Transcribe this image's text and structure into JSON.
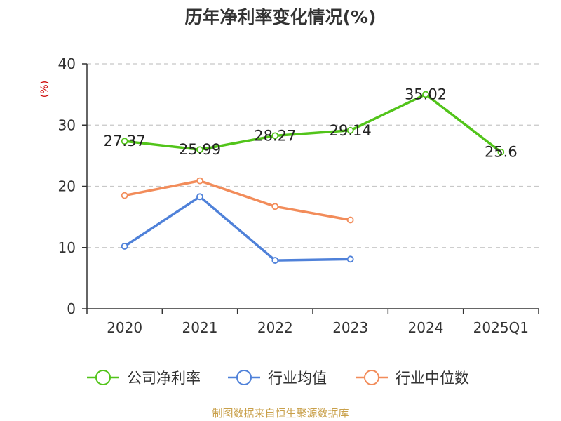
{
  "chart_data": {
    "type": "line",
    "title": "历年净利率变化情况(%)",
    "ylabel": "(%)",
    "xlabel": "",
    "categories": [
      "2020",
      "2021",
      "2022",
      "2023",
      "2024",
      "2025Q1"
    ],
    "ylim": [
      0,
      40
    ],
    "yticks": [
      0,
      10,
      20,
      30,
      40
    ],
    "grid": true,
    "series": [
      {
        "name": "公司净利率",
        "color": "#52c41a",
        "values": [
          27.37,
          25.99,
          28.27,
          29.14,
          35.02,
          25.6
        ],
        "labels": [
          "27.37",
          "25.99",
          "28.27",
          "29.14",
          "35.02",
          "25.6"
        ]
      },
      {
        "name": "行业均值",
        "color": "#4f81d9",
        "values": [
          10.2,
          18.3,
          7.9,
          8.1,
          null,
          null
        ]
      },
      {
        "name": "行业中位数",
        "color": "#f28c5a",
        "values": [
          18.5,
          20.9,
          16.7,
          14.5,
          null,
          null
        ]
      }
    ],
    "legend_position": "bottom"
  },
  "colors": {
    "axis": "#333333",
    "grid": "#c8c8c8",
    "ylabel": "#cc0000",
    "source": "#c9a04a"
  },
  "source": "制图数据来自恒生聚源数据库"
}
